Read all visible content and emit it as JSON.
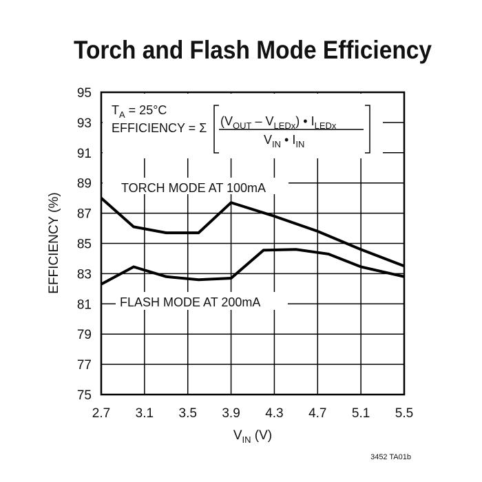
{
  "chart_data": {
    "type": "line",
    "title": "Torch and Flash Mode Efficiency",
    "xlabel": {
      "main": "V",
      "sub": "IN",
      "unit": " (V)"
    },
    "ylabel": "EFFICIENCY (%)",
    "xlim": [
      2.7,
      5.5
    ],
    "ylim": [
      75,
      95
    ],
    "xticks": [
      "2.7",
      "3.1",
      "3.5",
      "3.9",
      "4.3",
      "4.7",
      "5.1",
      "5.5"
    ],
    "yticks": [
      "75",
      "77",
      "79",
      "81",
      "83",
      "85",
      "87",
      "89",
      "91",
      "93",
      "95"
    ],
    "grid": true,
    "series": [
      {
        "name": "TORCH MODE AT 100mA",
        "x": [
          2.7,
          3.0,
          3.3,
          3.6,
          3.9,
          4.3,
          4.7,
          5.1,
          5.5
        ],
        "y": [
          88.0,
          86.1,
          85.7,
          85.7,
          87.7,
          86.8,
          85.8,
          84.6,
          83.5
        ]
      },
      {
        "name": "FLASH MODE AT 200mA",
        "x": [
          2.7,
          3.0,
          3.3,
          3.6,
          3.9,
          4.2,
          4.5,
          4.8,
          5.1,
          5.5
        ],
        "y": [
          82.3,
          83.45,
          82.8,
          82.6,
          82.7,
          84.55,
          84.6,
          84.3,
          83.45,
          82.8
        ]
      }
    ],
    "annotations": {
      "ta": {
        "t": "T",
        "sub": "A",
        "rest": " = 25°C"
      },
      "eff_label": "EFFICIENCY = Σ",
      "numerator": {
        "p1": "(V",
        "s1": "OUT",
        "p2": " – V",
        "s2": "LEDx",
        "p3": ") • I",
        "s3": "LEDx"
      },
      "denominator": {
        "p1": "V",
        "s1": "IN",
        "p2": " • I",
        "s2": "IN"
      }
    },
    "color": "#000000"
  },
  "footer": "3452 TA01b"
}
